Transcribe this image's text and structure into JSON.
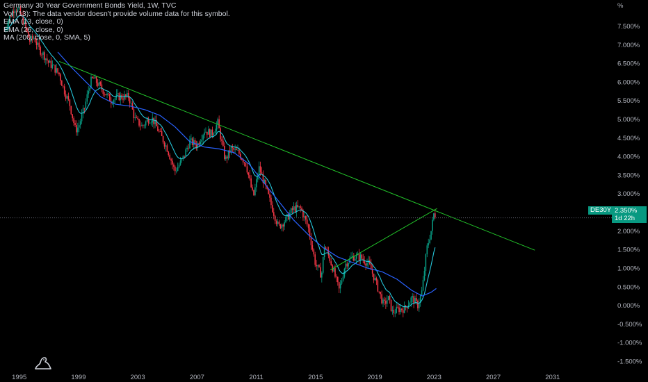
{
  "legend": {
    "title": "Germany 30 Year Government Bonds Yield, 1W, TVC",
    "vol": "Vol (13): The data vendor doesn't provide volume data for this symbol.",
    "ema13": "EMA (13, close, 0)",
    "ema26": "EMA (26, close, 0)",
    "ma200": "MA (200, close, 0, SMA, 5)"
  },
  "price_label": {
    "symbol": "DE30Y",
    "value": "2.350%",
    "countdown": "1d 22h"
  },
  "colors": {
    "background": "#000000",
    "bullish": "#089981",
    "bearish": "#f23645",
    "ema_fast": "#26c6da",
    "ma_slow": "#2962ff",
    "trendline": "#22c42a",
    "axis_text": "#b2b5be",
    "price_tag": "#089981"
  },
  "icons": {
    "logo": "tradingview-logo-icon"
  },
  "chart_data": {
    "type": "line",
    "title": "Germany 30 Year Government Bonds Yield, 1W, TVC",
    "xlabel": "",
    "ylabel": "",
    "y_unit": "%",
    "ylim": [
      -1.65,
      8.2
    ],
    "xlim": [
      1993.7,
      2035.0
    ],
    "x_ticks": [
      1995,
      1999,
      2003,
      2007,
      2011,
      2015,
      2019,
      2023,
      2027,
      2031
    ],
    "x_tick_labels": [
      "1995",
      "1999",
      "2003",
      "2007",
      "2011",
      "2015",
      "2019",
      "2023",
      "2027",
      "2031"
    ],
    "y_ticks": [
      7.5,
      7.0,
      6.5,
      6.0,
      5.5,
      5.0,
      4.5,
      4.0,
      3.5,
      3.0,
      2.5,
      2.0,
      1.5,
      1.0,
      0.5,
      0.0,
      -0.5,
      -1.0,
      -1.5
    ],
    "y_tick_labels": [
      "7.500%",
      "7.000%",
      "6.500%",
      "6.000%",
      "5.500%",
      "5.000%",
      "4.500%",
      "4.000%",
      "3.500%",
      "3.000%",
      "2.500%",
      "2.000%",
      "1.500%",
      "1.000%",
      "0.500%",
      "0.000%",
      "-0.500%",
      "-1.000%",
      "-1.500%"
    ],
    "current_value": 2.35,
    "grid": false,
    "series": [
      {
        "key": "price",
        "points": [
          [
            1994.0,
            7.4
          ],
          [
            1994.3,
            7.7
          ],
          [
            1994.7,
            8.0
          ],
          [
            1995.0,
            7.9
          ],
          [
            1995.3,
            7.6
          ],
          [
            1995.7,
            7.1
          ],
          [
            1996.0,
            7.2
          ],
          [
            1996.3,
            6.9
          ],
          [
            1996.7,
            6.7
          ],
          [
            1997.0,
            6.5
          ],
          [
            1997.3,
            6.4
          ],
          [
            1997.7,
            6.2
          ],
          [
            1998.0,
            5.8
          ],
          [
            1998.4,
            5.4
          ],
          [
            1998.8,
            4.7
          ],
          [
            1999.0,
            4.8
          ],
          [
            1999.4,
            5.3
          ],
          [
            1999.8,
            6.0
          ],
          [
            2000.0,
            6.1
          ],
          [
            2000.4,
            5.9
          ],
          [
            2000.8,
            5.7
          ],
          [
            2001.2,
            5.5
          ],
          [
            2001.6,
            5.6
          ],
          [
            2002.0,
            5.6
          ],
          [
            2002.4,
            5.6
          ],
          [
            2002.8,
            5.0
          ],
          [
            2003.3,
            4.8
          ],
          [
            2003.7,
            5.0
          ],
          [
            2004.0,
            5.0
          ],
          [
            2004.5,
            4.6
          ],
          [
            2005.0,
            4.2
          ],
          [
            2005.5,
            3.6
          ],
          [
            2006.0,
            3.9
          ],
          [
            2006.5,
            4.4
          ],
          [
            2007.0,
            4.3
          ],
          [
            2007.5,
            4.7
          ],
          [
            2008.0,
            4.6
          ],
          [
            2008.4,
            4.9
          ],
          [
            2008.9,
            3.9
          ],
          [
            2009.3,
            4.2
          ],
          [
            2009.8,
            4.1
          ],
          [
            2010.3,
            3.8
          ],
          [
            2010.8,
            2.9
          ],
          [
            2011.2,
            3.7
          ],
          [
            2011.6,
            3.2
          ],
          [
            2012.0,
            2.7
          ],
          [
            2012.5,
            2.1
          ],
          [
            2013.0,
            2.3
          ],
          [
            2013.5,
            2.6
          ],
          [
            2014.0,
            2.6
          ],
          [
            2014.5,
            2.1
          ],
          [
            2015.0,
            1.1
          ],
          [
            2015.4,
            0.8
          ],
          [
            2015.6,
            1.6
          ],
          [
            2016.0,
            1.2
          ],
          [
            2016.6,
            0.4
          ],
          [
            2017.0,
            1.1
          ],
          [
            2017.5,
            1.3
          ],
          [
            2018.0,
            1.3
          ],
          [
            2018.6,
            1.1
          ],
          [
            2019.0,
            0.7
          ],
          [
            2019.6,
            0.0
          ],
          [
            2019.9,
            0.2
          ],
          [
            2020.2,
            -0.2
          ],
          [
            2020.6,
            -0.1
          ],
          [
            2021.0,
            -0.1
          ],
          [
            2021.5,
            0.2
          ],
          [
            2021.9,
            0.0
          ],
          [
            2022.2,
            0.4
          ],
          [
            2022.5,
            1.5
          ],
          [
            2022.8,
            2.0
          ],
          [
            2023.0,
            2.5
          ],
          [
            2023.15,
            2.35
          ]
        ]
      },
      {
        "key": "ma200",
        "points": [
          [
            1997.6,
            6.8
          ],
          [
            1998.5,
            6.4
          ],
          [
            1999.5,
            6.0
          ],
          [
            2000.5,
            5.6
          ],
          [
            2001.5,
            5.4
          ],
          [
            2002.5,
            5.35
          ],
          [
            2003.5,
            5.25
          ],
          [
            2004.5,
            5.1
          ],
          [
            2005.5,
            4.8
          ],
          [
            2006.5,
            4.4
          ],
          [
            2007.5,
            4.25
          ],
          [
            2008.5,
            4.2
          ],
          [
            2009.5,
            4.1
          ],
          [
            2010.5,
            3.8
          ],
          [
            2011.5,
            3.3
          ],
          [
            2012.5,
            2.8
          ],
          [
            2013.5,
            2.3
          ],
          [
            2014.5,
            1.9
          ],
          [
            2015.5,
            1.55
          ],
          [
            2016.5,
            1.3
          ],
          [
            2017.5,
            1.15
          ],
          [
            2018.5,
            1.0
          ],
          [
            2019.5,
            0.9
          ],
          [
            2020.5,
            0.7
          ],
          [
            2021.5,
            0.4
          ],
          [
            2022.2,
            0.25
          ],
          [
            2022.8,
            0.35
          ],
          [
            2023.15,
            0.45
          ]
        ]
      },
      {
        "key": "trendline-long",
        "points": [
          [
            1997.7,
            6.55
          ],
          [
            2029.8,
            1.48
          ]
        ]
      },
      {
        "key": "trendline-short",
        "points": [
          [
            2016.0,
            0.95
          ],
          [
            2023.2,
            2.6
          ]
        ]
      }
    ]
  }
}
